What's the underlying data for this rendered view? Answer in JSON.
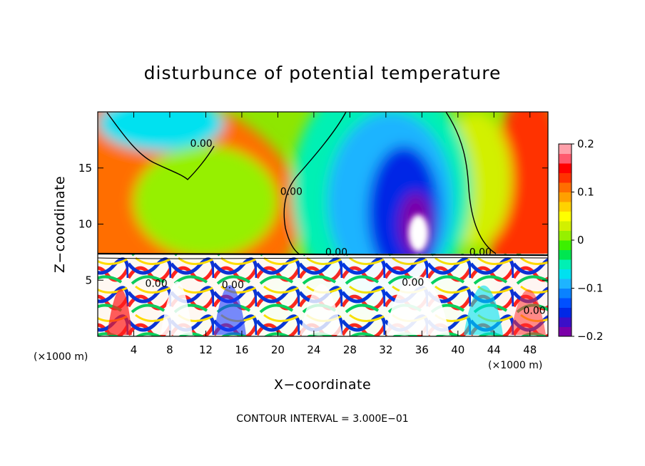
{
  "chart_data": {
    "type": "heatmap",
    "title": "disturbunce of potential temperature",
    "xlabel": "X−coordinate",
    "ylabel": "Z−coordinate",
    "x_unit_left": "(×1000 m)",
    "x_unit_right": "(×1000 m)",
    "footer": "CONTOUR INTERVAL = 3.000E−01",
    "xlim": [
      0,
      50
    ],
    "ylim": [
      0,
      20
    ],
    "xticks": [
      4,
      8,
      12,
      16,
      20,
      24,
      28,
      32,
      36,
      40,
      44,
      48
    ],
    "xtick_labels": [
      "4",
      "8",
      "12",
      "16",
      "20",
      "24",
      "28",
      "32",
      "36",
      "40",
      "44",
      "48"
    ],
    "yticks": [
      5,
      10,
      15
    ],
    "ytick_labels": [
      "5",
      "10",
      "15"
    ],
    "colorbar": {
      "min": -0.2,
      "max": 0.2,
      "ticks": [
        0.2,
        0.1,
        0,
        -0.1,
        -0.2
      ],
      "tick_labels": [
        "0.2",
        "0.1",
        "0",
        "−0.1",
        "−0.2"
      ],
      "colors": [
        "#7b00a8",
        "#3c0fc8",
        "#0028e6",
        "#0050ff",
        "#0a82ff",
        "#1eb4ff",
        "#00e1f0",
        "#00f0b4",
        "#00e650",
        "#3cf000",
        "#96f000",
        "#d2f000",
        "#ffff00",
        "#ffd200",
        "#ffa000",
        "#ff6e00",
        "#ff3200",
        "#ff0000",
        "#ff5a6e",
        "#ffa0aa"
      ]
    },
    "contour_label": "0.00",
    "contour_labels": [
      {
        "text": "0.00",
        "x": 11.5,
        "z": 16.9
      },
      {
        "text": "0.00",
        "x": 21.5,
        "z": 12.6
      },
      {
        "text": "0.00",
        "x": 26.5,
        "z": 7.2
      },
      {
        "text": "0.00",
        "x": 42.5,
        "z": 7.2
      },
      {
        "text": "0.00",
        "x": 6.5,
        "z": 4.4
      },
      {
        "text": "0.00",
        "x": 15.0,
        "z": 4.3
      },
      {
        "text": "0.00",
        "x": 35.0,
        "z": 4.5
      },
      {
        "text": "0.00",
        "x": 48.5,
        "z": 2.0
      }
    ],
    "field_features": [
      {
        "name": "warm-left-column",
        "x": 2.5,
        "z": 11.0,
        "value": 0.11
      },
      {
        "name": "warm-right-column",
        "x": 48.0,
        "z": 10.0,
        "value": 0.13
      },
      {
        "name": "cool-top-left",
        "x": 7.0,
        "z": 19.0,
        "value": -0.07
      },
      {
        "name": "cold-center-upper",
        "x": 31.0,
        "z": 17.0,
        "value": -0.09
      },
      {
        "name": "cold-center-core",
        "x": 35.0,
        "z": 11.5,
        "value": -0.2
      },
      {
        "name": "near-zero-upper-left",
        "x": 12.0,
        "z": 12.0,
        "value": 0.02
      },
      {
        "name": "near-zero-upper-right",
        "x": 42.0,
        "z": 14.0,
        "value": 0.03
      }
    ]
  }
}
